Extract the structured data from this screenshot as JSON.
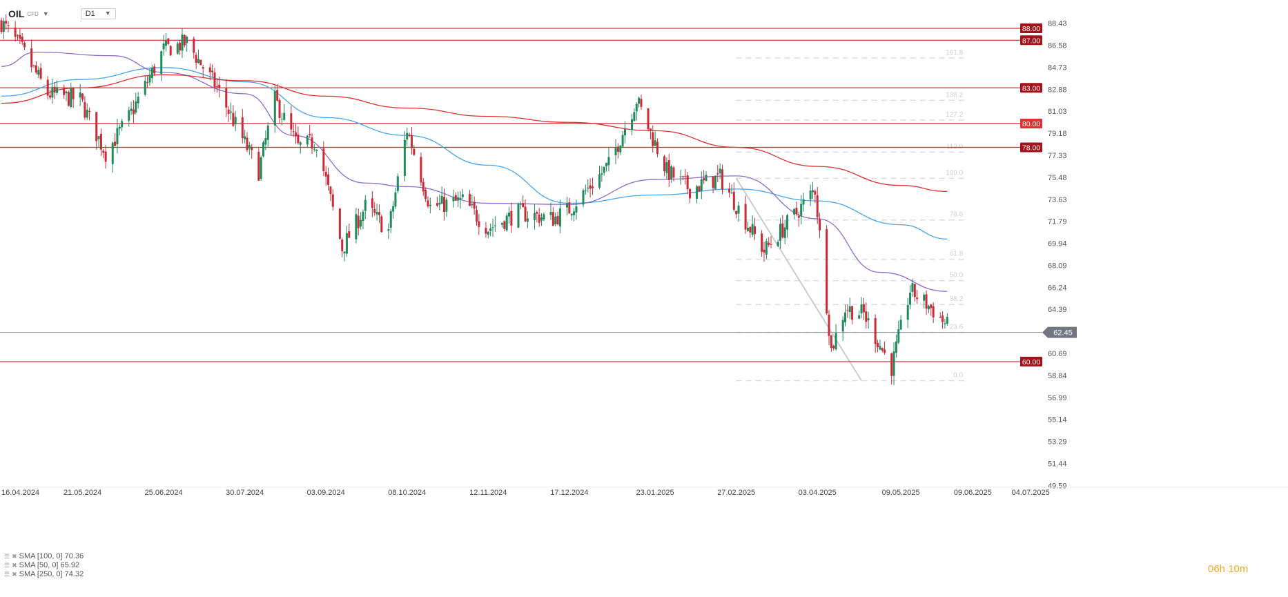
{
  "header": {
    "symbol": "OIL",
    "symbol_sub": "CFD",
    "timeframe": "D1"
  },
  "legend": [
    {
      "label": "SMA [100, 0] 70.36"
    },
    {
      "label": "SMA [50, 0] 65.92"
    },
    {
      "label": "SMA [250, 0] 74.32"
    }
  ],
  "timer": "06h 10m",
  "colors": {
    "up": "#1f8a5c",
    "down": "#cc2a36",
    "level": "#d8232a",
    "sma100": "#42a5f5",
    "sma50": "#8e6bd1",
    "sma250": "#dd3030",
    "fib": "#d8dde3",
    "price_line": "#8a9097"
  },
  "chart_data": {
    "type": "candlestick",
    "ylim": [
      49.5,
      89.8
    ],
    "y_ticks": [
      "88.43",
      "86.58",
      "84.73",
      "82.88",
      "81.03",
      "79.18",
      "77.33",
      "75.48",
      "73.63",
      "71.79",
      "69.94",
      "68.09",
      "66.24",
      "64.39",
      "62.54",
      "60.69",
      "58.84",
      "56.99",
      "55.14",
      "53.29",
      "51.44",
      "49.59"
    ],
    "x_ticks": [
      "16.04.2024",
      "21.05.2024",
      "25.06.2024",
      "30.07.2024",
      "03.09.2024",
      "08.10.2024",
      "12.11.2024",
      "17.12.2024",
      "23.01.2025",
      "27.02.2025",
      "03.04.2025",
      "09.05.2025",
      "09.06.2025",
      "04.07.2025"
    ],
    "horizontal_levels": [
      {
        "label": "88.00",
        "value": 88.0
      },
      {
        "label": "87.00",
        "value": 87.0
      },
      {
        "label": "83.00",
        "value": 83.0
      },
      {
        "label": "80.00",
        "value": 80.0
      },
      {
        "label": "78.00",
        "value": 78.0
      },
      {
        "label": "60.00",
        "value": 60.0
      }
    ],
    "last_price": {
      "label": "62.45",
      "value": 62.45
    },
    "fibonacci": [
      {
        "label": "161.8",
        "value": 85.5
      },
      {
        "label": "138.2",
        "value": 81.95
      },
      {
        "label": "127.2",
        "value": 80.3
      },
      {
        "label": "112.0",
        "value": 77.6
      },
      {
        "label": "100.0",
        "value": 75.4
      },
      {
        "label": "78.6",
        "value": 71.9
      },
      {
        "label": "61.8",
        "value": 68.6
      },
      {
        "label": "50.0",
        "value": 66.8
      },
      {
        "label": "38.2",
        "value": 64.8
      },
      {
        "label": "23.6",
        "value": 62.45
      },
      {
        "label": "0.0",
        "value": 58.4
      }
    ],
    "fib_swing": {
      "from": {
        "date": "27.02.2025",
        "value": 75.4
      },
      "to": {
        "date": "22.04.2025",
        "value": 58.4
      }
    },
    "x_range": [
      "16.04.2024",
      "09.07.2025"
    ],
    "candle_path": [
      {
        "date": "16.04.2024",
        "close": 88.5
      },
      {
        "date": "25.04.2024",
        "close": 86.2
      },
      {
        "date": "06.05.2024",
        "close": 82.5
      },
      {
        "date": "20.05.2024",
        "close": 82.0
      },
      {
        "date": "31.05.2024",
        "close": 77.5
      },
      {
        "date": "10.06.2024",
        "close": 80.5
      },
      {
        "date": "25.06.2024",
        "close": 86.2
      },
      {
        "date": "05.07.2024",
        "close": 86.8
      },
      {
        "date": "18.07.2024",
        "close": 83.0
      },
      {
        "date": "05.08.2024",
        "close": 76.0
      },
      {
        "date": "12.08.2024",
        "close": 82.0
      },
      {
        "date": "22.08.2024",
        "close": 78.0
      },
      {
        "date": "30.08.2024",
        "close": 78.5
      },
      {
        "date": "10.09.2024",
        "close": 69.5
      },
      {
        "date": "20.09.2024",
        "close": 73.0
      },
      {
        "date": "30.09.2024",
        "close": 71.0
      },
      {
        "date": "08.10.2024",
        "close": 79.5
      },
      {
        "date": "18.10.2024",
        "close": 73.0
      },
      {
        "date": "01.11.2024",
        "close": 73.5
      },
      {
        "date": "12.11.2024",
        "close": 71.2
      },
      {
        "date": "25.11.2024",
        "close": 72.5
      },
      {
        "date": "10.12.2024",
        "close": 72.0
      },
      {
        "date": "17.12.2024",
        "close": 72.8
      },
      {
        "date": "03.01.2025",
        "close": 76.5
      },
      {
        "date": "15.01.2025",
        "close": 82.0
      },
      {
        "date": "28.01.2025",
        "close": 76.0
      },
      {
        "date": "07.02.2025",
        "close": 74.5
      },
      {
        "date": "20.02.2025",
        "close": 75.5
      },
      {
        "date": "04.03.2025",
        "close": 71.5
      },
      {
        "date": "11.03.2025",
        "close": 69.3
      },
      {
        "date": "25.03.2025",
        "close": 72.5
      },
      {
        "date": "02.04.2025",
        "close": 74.5
      },
      {
        "date": "09.04.2025",
        "close": 61.0
      },
      {
        "date": "15.04.2025",
        "close": 64.5
      },
      {
        "date": "23.04.2025",
        "close": 64.0
      },
      {
        "date": "05.05.2025",
        "close": 59.5
      },
      {
        "date": "13.05.2025",
        "close": 66.0
      },
      {
        "date": "22.05.2025",
        "close": 64.5
      },
      {
        "date": "29.05.2025",
        "close": 63.0
      }
    ],
    "series": [
      {
        "name": "SMA [100, 0]",
        "points": [
          {
            "date": "16.04.2024",
            "value": 82.3
          },
          {
            "date": "20.05.2024",
            "value": 83.7
          },
          {
            "date": "25.06.2024",
            "value": 84.7
          },
          {
            "date": "30.07.2024",
            "value": 83.5
          },
          {
            "date": "03.09.2024",
            "value": 80.5
          },
          {
            "date": "08.10.2024",
            "value": 79.0
          },
          {
            "date": "12.11.2024",
            "value": 76.5
          },
          {
            "date": "17.12.2024",
            "value": 73.3
          },
          {
            "date": "23.01.2025",
            "value": 74.0
          },
          {
            "date": "27.02.2025",
            "value": 74.5
          },
          {
            "date": "03.04.2025",
            "value": 73.5
          },
          {
            "date": "09.05.2025",
            "value": 71.5
          },
          {
            "date": "29.05.2025",
            "value": 70.3
          }
        ]
      },
      {
        "name": "SMA [50, 0]",
        "points": [
          {
            "date": "16.04.2024",
            "value": 84.8
          },
          {
            "date": "01.05.2024",
            "value": 86.0
          },
          {
            "date": "03.06.2024",
            "value": 85.7
          },
          {
            "date": "25.06.2024",
            "value": 84.3
          },
          {
            "date": "30.07.2024",
            "value": 82.5
          },
          {
            "date": "20.08.2024",
            "value": 79.0
          },
          {
            "date": "20.09.2024",
            "value": 75.0
          },
          {
            "date": "08.10.2024",
            "value": 74.7
          },
          {
            "date": "12.11.2024",
            "value": 73.3
          },
          {
            "date": "17.12.2024",
            "value": 73.2
          },
          {
            "date": "23.01.2025",
            "value": 75.3
          },
          {
            "date": "27.02.2025",
            "value": 75.6
          },
          {
            "date": "03.04.2025",
            "value": 72.0
          },
          {
            "date": "30.04.2025",
            "value": 67.5
          },
          {
            "date": "29.05.2025",
            "value": 65.9
          }
        ]
      },
      {
        "name": "SMA [250, 0]",
        "points": [
          {
            "date": "16.04.2024",
            "value": 81.7
          },
          {
            "date": "20.05.2024",
            "value": 83.0
          },
          {
            "date": "25.06.2024",
            "value": 84.1
          },
          {
            "date": "30.07.2024",
            "value": 83.6
          },
          {
            "date": "03.09.2024",
            "value": 82.3
          },
          {
            "date": "08.10.2024",
            "value": 81.3
          },
          {
            "date": "12.11.2024",
            "value": 80.6
          },
          {
            "date": "17.12.2024",
            "value": 80.1
          },
          {
            "date": "23.01.2025",
            "value": 79.4
          },
          {
            "date": "27.02.2025",
            "value": 78.0
          },
          {
            "date": "03.04.2025",
            "value": 76.4
          },
          {
            "date": "09.05.2025",
            "value": 74.8
          },
          {
            "date": "29.05.2025",
            "value": 74.3
          }
        ]
      }
    ]
  }
}
